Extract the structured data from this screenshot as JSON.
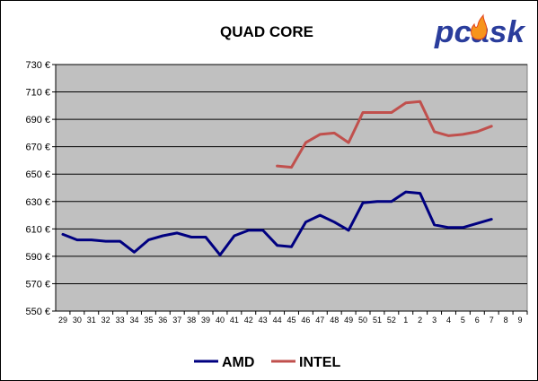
{
  "chart_data": {
    "type": "line",
    "title": "QUAD CORE",
    "logo_text": "pcask",
    "xlabel": "",
    "ylabel": "",
    "categories": [
      "29",
      "30",
      "31",
      "32",
      "33",
      "34",
      "35",
      "36",
      "37",
      "38",
      "39",
      "40",
      "41",
      "42",
      "43",
      "44",
      "45",
      "46",
      "47",
      "48",
      "49",
      "50",
      "51",
      "52",
      "1",
      "2",
      "3",
      "4",
      "5",
      "6",
      "7",
      "8",
      "9"
    ],
    "yticks": [
      "550 €",
      "570 €",
      "590 €",
      "610 €",
      "630 €",
      "650 €",
      "670 €",
      "690 €",
      "710 €",
      "730 €"
    ],
    "ylim": [
      550,
      730
    ],
    "grid": true,
    "legend_position": "bottom",
    "series": [
      {
        "name": "AMD",
        "color": "#000080",
        "values": [
          606,
          602,
          602,
          601,
          601,
          593,
          602,
          605,
          607,
          604,
          604,
          591,
          605,
          609,
          609,
          598,
          597,
          615,
          620,
          615,
          609,
          629,
          630,
          630,
          637,
          636,
          613,
          611,
          611,
          614,
          617,
          null,
          null
        ]
      },
      {
        "name": "INTEL",
        "color": "#c0504d",
        "values": [
          null,
          null,
          null,
          null,
          null,
          null,
          null,
          null,
          null,
          null,
          null,
          null,
          null,
          null,
          null,
          656,
          655,
          673,
          679,
          680,
          673,
          695,
          695,
          695,
          702,
          703,
          681,
          678,
          679,
          681,
          685,
          null,
          null
        ]
      }
    ]
  }
}
